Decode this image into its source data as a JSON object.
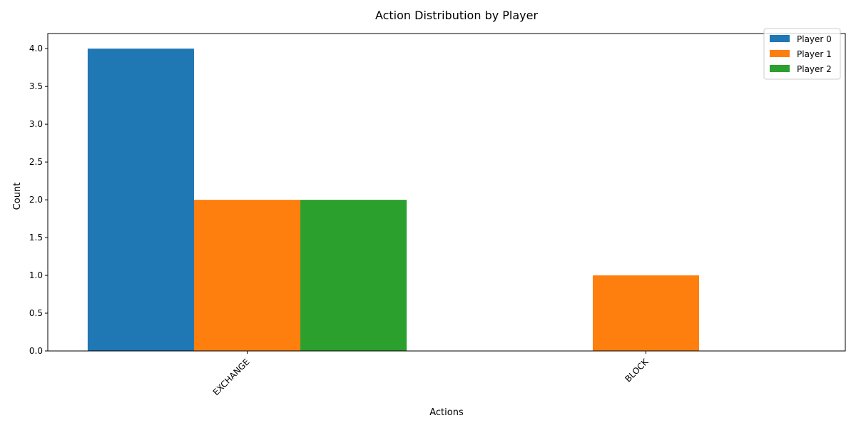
{
  "chart_data": {
    "type": "bar",
    "title": "Action Distribution by Player",
    "xlabel": "Actions",
    "ylabel": "Count",
    "categories": [
      "EXCHANGE",
      "BLOCK"
    ],
    "series": [
      {
        "name": "Player 0",
        "values": [
          4,
          0
        ],
        "color": "#1f77b4"
      },
      {
        "name": "Player 1",
        "values": [
          2,
          1
        ],
        "color": "#ff7f0e"
      },
      {
        "name": "Player 2",
        "values": [
          2,
          0
        ],
        "color": "#2ca02c"
      }
    ],
    "ylim": [
      0,
      4.2
    ],
    "yticks": [
      "0.0",
      "0.5",
      "1.0",
      "1.5",
      "2.0",
      "2.5",
      "3.0",
      "3.5",
      "4.0"
    ],
    "x_tick_rotation_deg": 45,
    "grid": false,
    "legend_position": "top-right"
  }
}
